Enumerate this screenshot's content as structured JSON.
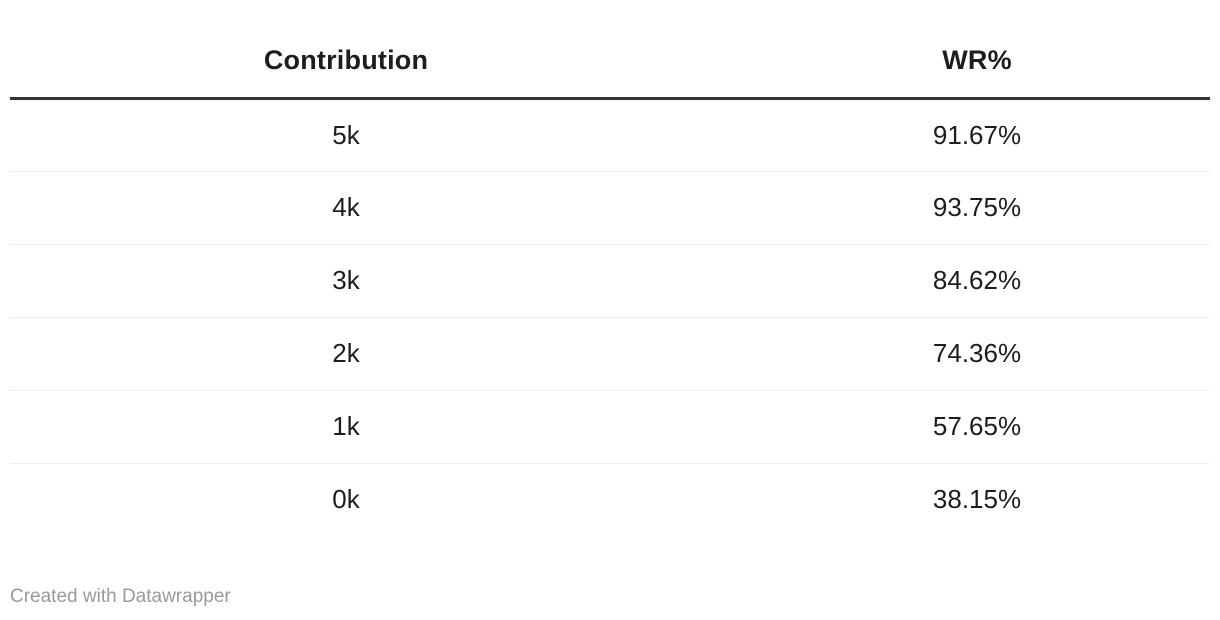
{
  "table": {
    "columns": [
      {
        "label": "Contribution"
      },
      {
        "label": "WR%"
      }
    ],
    "rows": [
      {
        "contribution": "5k",
        "wr": "91.67%"
      },
      {
        "contribution": "4k",
        "wr": "93.75%"
      },
      {
        "contribution": "3k",
        "wr": "84.62%"
      },
      {
        "contribution": "2k",
        "wr": "74.36%"
      },
      {
        "contribution": "1k",
        "wr": "57.65%"
      },
      {
        "contribution": "0k",
        "wr": "38.15%"
      }
    ]
  },
  "footer": {
    "attribution": "Created with Datawrapper"
  },
  "chart_data": {
    "type": "table",
    "title": "",
    "columns": [
      "Contribution",
      "WR%"
    ],
    "rows": [
      [
        "5k",
        "91.67%"
      ],
      [
        "4k",
        "93.75%"
      ],
      [
        "3k",
        "84.62%"
      ],
      [
        "2k",
        "74.36%"
      ],
      [
        "1k",
        "57.65%"
      ],
      [
        "0k",
        "38.15%"
      ]
    ],
    "wr_percent_values": [
      91.67,
      93.75,
      84.62,
      74.36,
      57.65,
      38.15
    ],
    "layout": {
      "grid": "horizontal-row-dividers",
      "header_rule": true,
      "alignment": "center"
    }
  },
  "colors": {
    "bg": "#ffffff",
    "text": "#1d1d1d",
    "rule": "#333333",
    "divider": "#eeeeee",
    "muted": "#9a9a9a"
  }
}
